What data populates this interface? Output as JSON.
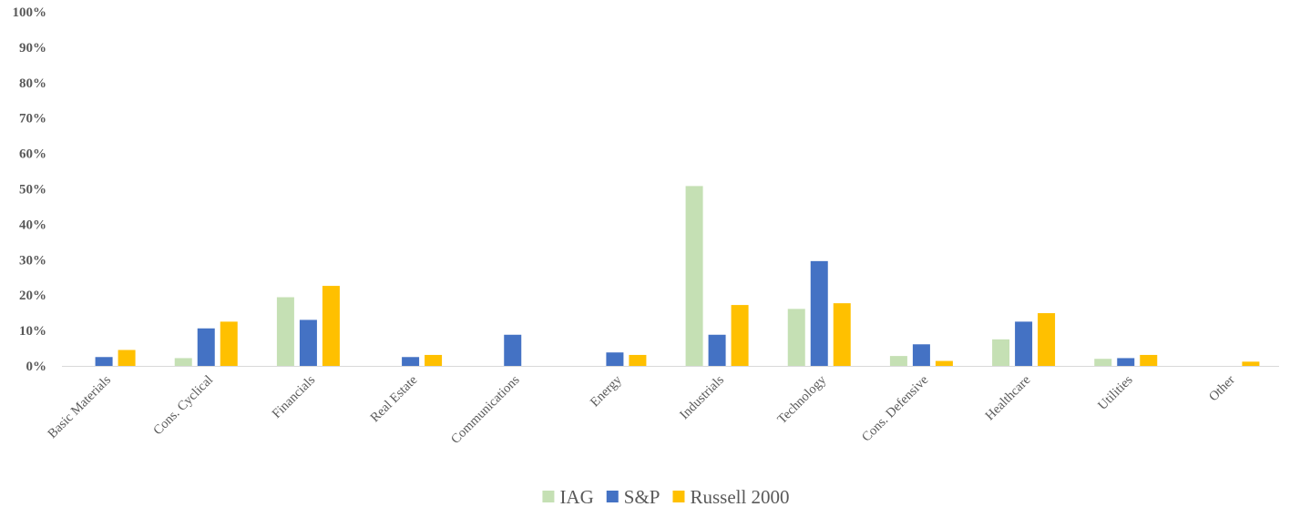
{
  "chart_data": {
    "type": "bar",
    "title": "",
    "xlabel": "",
    "ylabel": "",
    "ylim": [
      0,
      100
    ],
    "yticks": [
      "0%",
      "10%",
      "20%",
      "30%",
      "40%",
      "50%",
      "60%",
      "70%",
      "80%",
      "90%",
      "100%"
    ],
    "grid": false,
    "legend_position": "bottom-center",
    "categories": [
      "Basic Materials",
      "Cons. Cyclical",
      "Financials",
      "Real Estate",
      "Communications",
      "Energy",
      "Industrials",
      "Technology",
      "Cons. Defensive",
      "Healthcare",
      "Utilities",
      "Other"
    ],
    "series": [
      {
        "name": "IAG",
        "color": "#c5e0b4",
        "values": [
          0,
          2.2,
          19.4,
          0,
          0,
          0,
          50.8,
          16.1,
          2.8,
          7.5,
          2.0,
          0
        ]
      },
      {
        "name": "S&P",
        "color": "#4472c4",
        "values": [
          2.5,
          10.6,
          13.0,
          2.5,
          8.8,
          3.8,
          8.8,
          29.6,
          6.1,
          12.5,
          2.2,
          0
        ]
      },
      {
        "name": "Russell 2000",
        "color": "#ffc000",
        "values": [
          4.5,
          12.5,
          22.6,
          3.1,
          0,
          3.1,
          17.2,
          17.7,
          1.4,
          14.9,
          3.1,
          1.2
        ]
      }
    ]
  }
}
